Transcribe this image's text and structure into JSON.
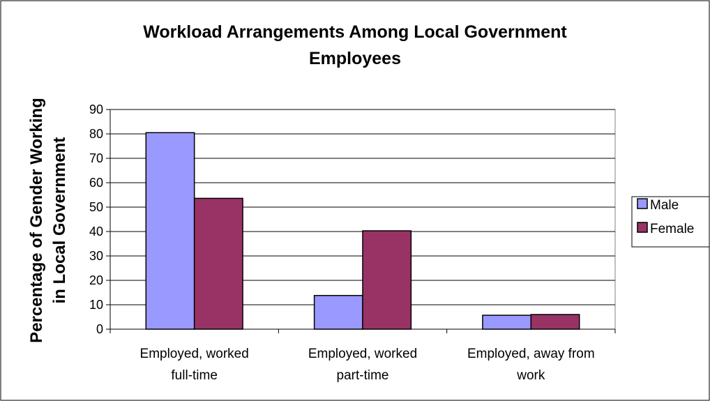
{
  "chart_data": {
    "type": "bar",
    "title_lines": [
      "Workload Arrangements Among Local Government",
      "Employees"
    ],
    "ylabel_lines": [
      "Percentage of Gender Working",
      "in Local Government"
    ],
    "xlabel": "",
    "categories": [
      [
        "Employed, worked",
        "full-time"
      ],
      [
        "Employed, worked",
        "part-time"
      ],
      [
        "Employed, away from",
        "work"
      ]
    ],
    "series": [
      {
        "name": "Male",
        "color": "#9999ff",
        "values": [
          80.5,
          13.8,
          5.7
        ]
      },
      {
        "name": "Female",
        "color": "#993366",
        "values": [
          53.6,
          40.3,
          6.0
        ]
      }
    ],
    "ylim": [
      0,
      90
    ],
    "yticks": [
      0,
      10,
      20,
      30,
      40,
      50,
      60,
      70,
      80,
      90
    ],
    "grid": true,
    "legend_position": "right"
  }
}
